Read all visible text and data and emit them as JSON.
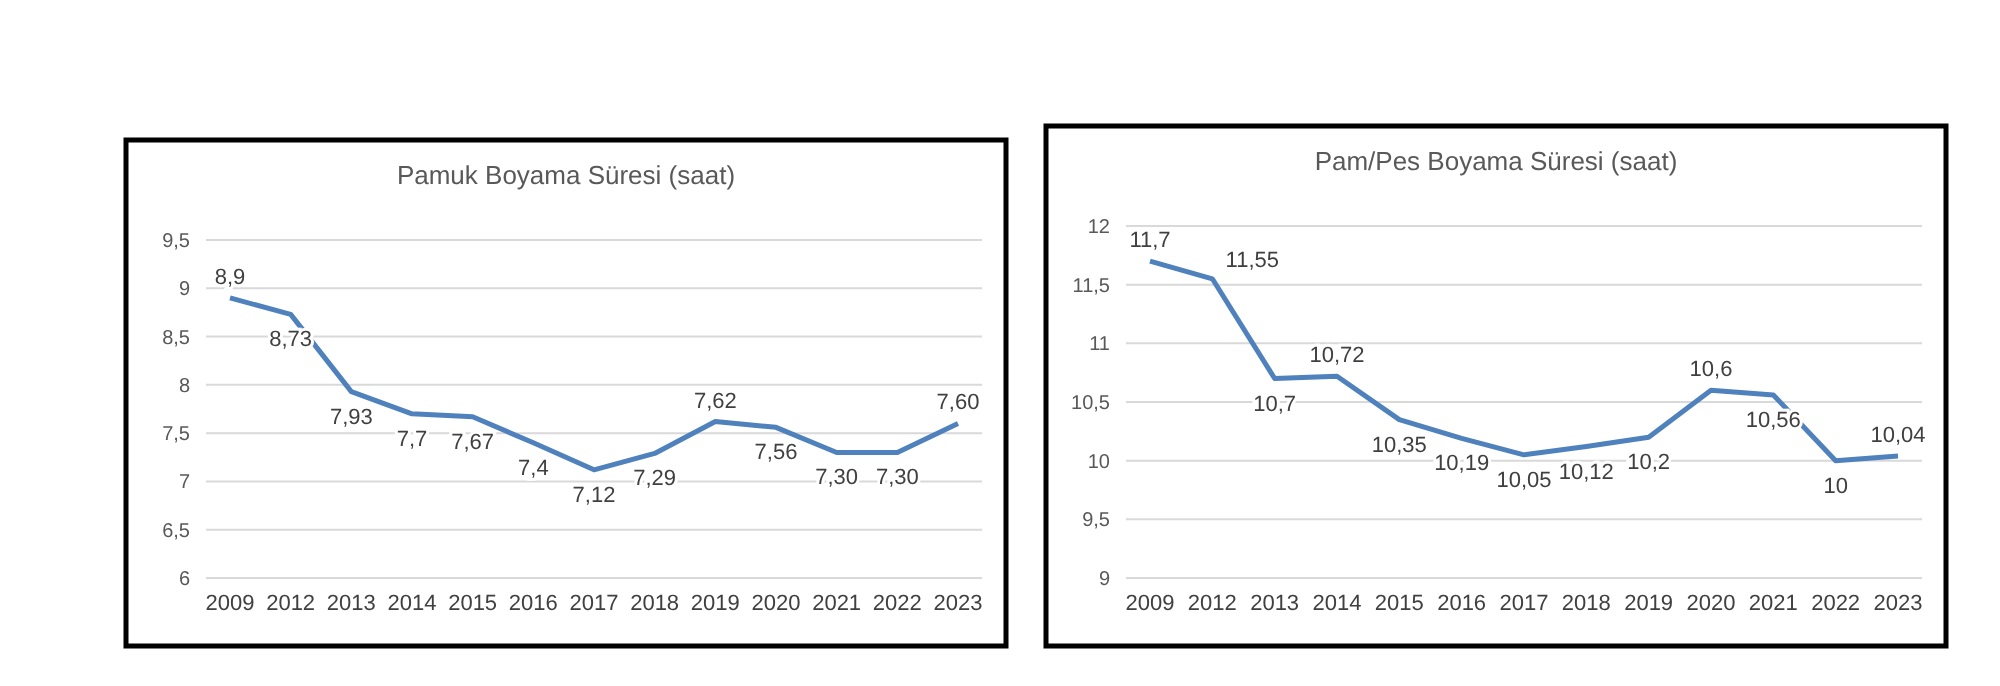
{
  "chart_data": [
    {
      "type": "line",
      "title": "Pamuk Boyama Süresi (saat)",
      "categories": [
        "2009",
        "2012",
        "2013",
        "2014",
        "2015",
        "2016",
        "2017",
        "2018",
        "2019",
        "2020",
        "2021",
        "2022",
        "2023"
      ],
      "series": [
        {
          "color": "#4f81bd",
          "values": [
            8.9,
            8.73,
            7.93,
            7.7,
            7.67,
            7.4,
            7.12,
            7.29,
            7.62,
            7.56,
            7.3,
            7.3,
            7.6
          ],
          "value_labels": [
            "8,9",
            "8,73",
            "7,93",
            "7,7",
            "7,67",
            "7,4",
            "7,12",
            "7,29",
            "7,62",
            "7,56",
            "7,30",
            "7,30",
            "7,60"
          ]
        }
      ],
      "ylim": [
        6,
        9.5
      ],
      "yticks": [
        {
          "value": 6,
          "label": "6"
        },
        {
          "value": 6.5,
          "label": "6,5"
        },
        {
          "value": 7,
          "label": "7"
        },
        {
          "value": 7.5,
          "label": "7,5"
        },
        {
          "value": 8,
          "label": "8"
        },
        {
          "value": 8.5,
          "label": "8,5"
        },
        {
          "value": 9,
          "label": "9"
        },
        {
          "value": 9.5,
          "label": "9,5"
        }
      ],
      "grid": "y"
    },
    {
      "type": "line",
      "title": "Pam/Pes Boyama Süresi (saat)",
      "categories": [
        "2009",
        "2012",
        "2013",
        "2014",
        "2015",
        "2016",
        "2017",
        "2018",
        "2019",
        "2020",
        "2021",
        "2022",
        "2023"
      ],
      "series": [
        {
          "color": "#4f81bd",
          "values": [
            11.7,
            11.55,
            10.7,
            10.72,
            10.35,
            10.19,
            10.05,
            10.12,
            10.2,
            10.6,
            10.56,
            10,
            10.04
          ],
          "value_labels": [
            "11,7",
            "11,55",
            "10,7",
            "10,72",
            "10,35",
            "10,19",
            "10,05",
            "10,12",
            "10,2",
            "10,6",
            "10,56",
            "10",
            "10,04"
          ]
        }
      ],
      "ylim": [
        9,
        12
      ],
      "yticks": [
        {
          "value": 9,
          "label": "9"
        },
        {
          "value": 9.5,
          "label": "9,5"
        },
        {
          "value": 10,
          "label": "10"
        },
        {
          "value": 10.5,
          "label": "10,5"
        },
        {
          "value": 11,
          "label": "11"
        },
        {
          "value": 11.5,
          "label": "11,5"
        },
        {
          "value": 12,
          "label": "12"
        }
      ],
      "grid": "y"
    }
  ]
}
